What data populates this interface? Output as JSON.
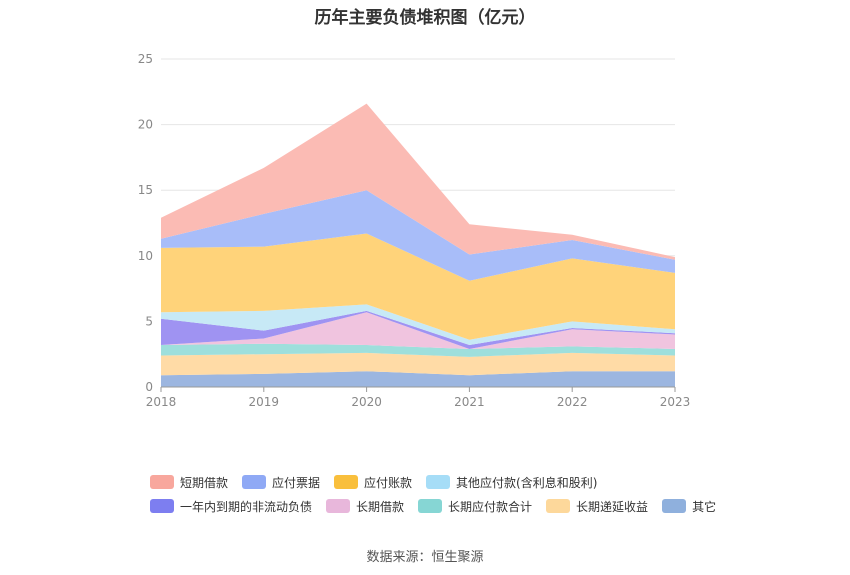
{
  "chart_data": {
    "type": "area",
    "stacked": true,
    "title": "历年主要负债堆积图（亿元）",
    "x": [
      "2018",
      "2019",
      "2020",
      "2021",
      "2022",
      "2023"
    ],
    "ylim": [
      0,
      25
    ],
    "yticks": [
      0,
      5,
      10,
      15,
      20,
      25
    ],
    "grid": true,
    "legend_position": "bottom",
    "series": [
      {
        "name": "其它",
        "color": "#9cb6e0",
        "values": [
          0.9,
          1.0,
          1.2,
          0.9,
          1.2,
          1.2
        ]
      },
      {
        "name": "长期递延收益",
        "color": "#ffdba6",
        "values": [
          1.5,
          1.5,
          1.4,
          1.4,
          1.4,
          1.2
        ]
      },
      {
        "name": "长期应付款合计",
        "color": "#9edfdc",
        "values": [
          0.8,
          0.8,
          0.6,
          0.6,
          0.5,
          0.5
        ]
      },
      {
        "name": "长期借款",
        "color": "#f0c4df",
        "values": [
          0.0,
          0.4,
          2.5,
          0.0,
          1.3,
          1.1
        ]
      },
      {
        "name": "一年内到期的非流动负债",
        "color": "#9f93f2",
        "values": [
          2.0,
          0.6,
          0.1,
          0.3,
          0.1,
          0.1
        ]
      },
      {
        "name": "其他应付款(含利息和股利)",
        "color": "#c7e9f6",
        "values": [
          0.5,
          1.5,
          0.5,
          0.4,
          0.5,
          0.3
        ]
      },
      {
        "name": "应付账款",
        "color": "#ffd37a",
        "values": [
          4.9,
          4.9,
          5.4,
          4.5,
          4.8,
          4.3
        ]
      },
      {
        "name": "应付票据",
        "color": "#a8bdf9",
        "values": [
          0.7,
          2.5,
          3.3,
          2.0,
          1.4,
          1.0
        ]
      },
      {
        "name": "短期借款",
        "color": "#fbbbb4",
        "values": [
          1.6,
          3.5,
          6.6,
          2.3,
          0.4,
          0.2
        ]
      }
    ]
  },
  "legend": {
    "row1": [
      {
        "label": "短期借款",
        "color": "#f8a79d"
      },
      {
        "label": "应付票据",
        "color": "#8fa9f5"
      },
      {
        "label": "应付账款",
        "color": "#f9bf3c"
      },
      {
        "label": "其他应付款(含利息和股利)",
        "color": "#a6ddf7"
      }
    ],
    "row2": [
      {
        "label": "一年内到期的非流动负债",
        "color": "#7d7ef0"
      },
      {
        "label": "长期借款",
        "color": "#e8b7db"
      },
      {
        "label": "长期应付款合计",
        "color": "#86d6d4"
      },
      {
        "label": "长期递延收益",
        "color": "#fdd89b"
      },
      {
        "label": "其它",
        "color": "#8fb0dd"
      }
    ]
  },
  "source": "数据来源：恒生聚源"
}
